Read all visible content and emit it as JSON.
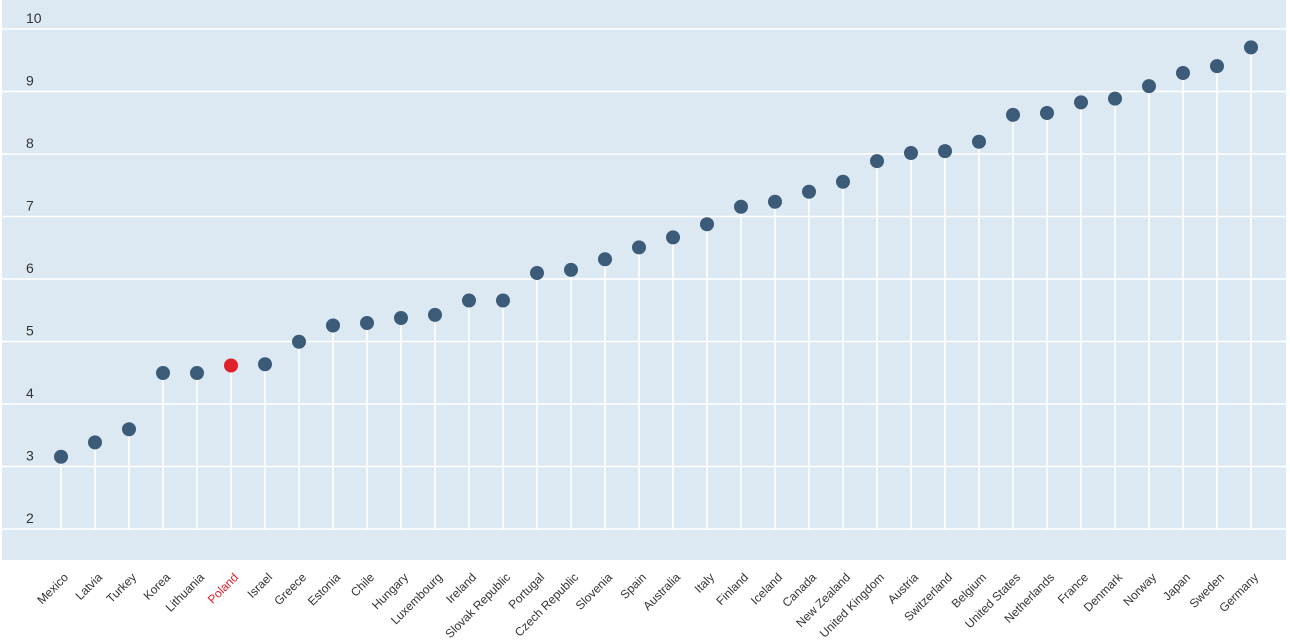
{
  "chart_data": {
    "type": "scatter",
    "style": "lollipop",
    "title": "",
    "xlabel": "",
    "ylabel": "",
    "ylim": [
      1.5,
      10.2
    ],
    "yticks": [
      2,
      3,
      4,
      5,
      6,
      7,
      8,
      9,
      10
    ],
    "grid": true,
    "legend": "none",
    "highlight": "Poland",
    "colors": {
      "background": "#dde9f2",
      "marker": "#3b5b78",
      "highlight": "#e0202a",
      "gridline": "#ffffff",
      "stem": "#ffffff",
      "text": "#333333"
    },
    "categories": [
      "Mexico",
      "Latvia",
      "Turkey",
      "Korea",
      "Lithuania",
      "Poland",
      "Israel",
      "Greece",
      "Estonia",
      "Chile",
      "Hungary",
      "Luxembourg",
      "Ireland",
      "Slovak Republic",
      "Portugal",
      "Czech Republic",
      "Slovenia",
      "Spain",
      "Australia",
      "Italy",
      "Finland",
      "Iceland",
      "Canada",
      "New Zealand",
      "United Kingdom",
      "Austria",
      "Switzerland",
      "Belgium",
      "United States",
      "Netherlands",
      "France",
      "Denmark",
      "Norway",
      "Japan",
      "Sweden",
      "Germany"
    ],
    "values": [
      2.98,
      3.21,
      3.42,
      4.32,
      4.32,
      4.44,
      4.46,
      4.82,
      5.08,
      5.12,
      5.2,
      5.25,
      5.48,
      5.48,
      5.92,
      5.97,
      6.14,
      6.33,
      6.49,
      6.7,
      6.98,
      7.06,
      7.22,
      7.38,
      7.71,
      7.84,
      7.87,
      8.02,
      8.45,
      8.48,
      8.65,
      8.71,
      8.91,
      9.12,
      9.23,
      9.53
    ]
  }
}
